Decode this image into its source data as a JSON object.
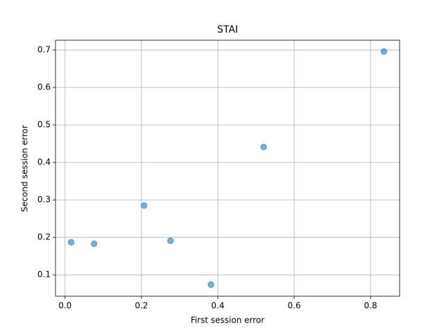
{
  "chart_data": {
    "type": "scatter",
    "title": "STAI",
    "x_label": "First session error",
    "y_label": "Second session error",
    "x": [
      0.016,
      0.076,
      0.207,
      0.276,
      0.382,
      0.52,
      0.835
    ],
    "values": [
      0.187,
      0.183,
      0.285,
      0.191,
      0.074,
      0.441,
      0.696
    ],
    "color": "#1f77b4",
    "xlim": [
      -0.025,
      0.876
    ],
    "xticks": [
      {
        "value": 0,
        "label": "0.0"
      },
      0.2,
      0.4,
      0.6,
      0.8
    ],
    "ylim": [
      0.043,
      0.726
    ],
    "yticks": [
      0.1,
      0.2,
      0.3,
      0.4,
      0.5,
      0.6,
      0.7
    ],
    "grid": true
  }
}
